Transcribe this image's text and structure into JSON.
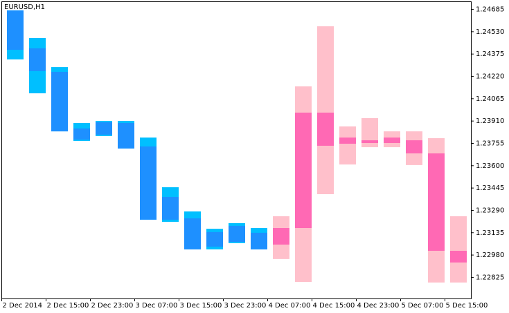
{
  "chart_data": {
    "type": "box-chart",
    "title": "EURUSD,H1",
    "xlim": [
      0,
      84.75
    ],
    "ylim": [
      1.22676,
      1.24738
    ],
    "xticks": [
      {
        "value": 0,
        "label": "2 Dec 2014"
      },
      {
        "value": 8,
        "label": "2 Dec 15:00"
      },
      {
        "value": 16,
        "label": "2 Dec 23:00"
      },
      {
        "value": 24,
        "label": "3 Dec 07:00"
      },
      {
        "value": 32,
        "label": "3 Dec 15:00"
      },
      {
        "value": 40,
        "label": "3 Dec 23:00"
      },
      {
        "value": 48,
        "label": "4 Dec 07:00"
      },
      {
        "value": 56,
        "label": "4 Dec 15:00"
      },
      {
        "value": 64,
        "label": "4 Dec 23:00"
      },
      {
        "value": 72,
        "label": "5 Dec 07:00"
      },
      {
        "value": 80,
        "label": "5 Dec 15:00"
      }
    ],
    "yticks": [
      1.22825,
      {
        "value": 1.2298,
        "label": "1.22980"
      },
      1.23135,
      {
        "value": 1.2329,
        "label": "1.23290"
      },
      1.23445,
      {
        "value": 1.236,
        "label": "1.23600"
      },
      1.23755,
      {
        "value": 1.2391,
        "label": "1.23910"
      },
      1.24065,
      {
        "value": 1.2422,
        "label": "1.24220"
      },
      1.24375,
      {
        "value": 1.2453,
        "label": "1.24530"
      },
      1.24685
    ],
    "boxes": {
      "start": [
        1,
        5,
        9,
        13,
        17,
        21,
        25,
        29,
        33,
        37,
        41,
        45,
        49,
        53,
        57,
        61,
        65,
        69,
        73,
        77,
        81
      ],
      "end": [
        4,
        8,
        12,
        16,
        20,
        24,
        28,
        32,
        36,
        40,
        44,
        48,
        52,
        56,
        60,
        64,
        68,
        72,
        76,
        80,
        84
      ],
      "outer_high": [
        1.24675,
        1.24484,
        1.24282,
        1.23894,
        1.23908,
        1.23908,
        1.23793,
        1.23448,
        1.2328,
        1.2316,
        1.23199,
        1.23165,
        1.23247,
        1.24148,
        1.24565,
        1.2387,
        1.23928,
        1.23836,
        1.23836,
        1.23789,
        1.23247
      ],
      "outer_low": [
        1.24335,
        1.241,
        1.23836,
        1.23769,
        1.23803,
        1.23717,
        1.23223,
        1.23208,
        1.23017,
        1.23017,
        1.2306,
        1.23017,
        1.2295,
        1.22791,
        1.234,
        1.23606,
        1.23726,
        1.23726,
        1.23602,
        1.22787,
        1.22787
      ],
      "inner_high": [
        1.24675,
        1.24412,
        1.24249,
        1.23856,
        1.23899,
        1.23894,
        1.23731,
        1.23381,
        1.23232,
        1.23137,
        1.2318,
        1.23132,
        1.23165,
        1.23966,
        1.23966,
        1.23793,
        1.23774,
        1.23793,
        1.23774,
        1.23683,
        1.23007
      ],
      "inner_low": [
        1.24402,
        1.24254,
        1.23836,
        1.23779,
        1.23813,
        1.23717,
        1.23223,
        1.23223,
        1.23017,
        1.23036,
        1.23069,
        1.23017,
        1.2305,
        1.23165,
        1.23736,
        1.2375,
        1.23755,
        1.23755,
        1.23683,
        1.23007,
        1.22926
      ],
      "outer_color": [
        "#00bfff",
        "#00bfff",
        "#00bfff",
        "#00bfff",
        "#00bfff",
        "#00bfff",
        "#00bfff",
        "#00bfff",
        "#00bfff",
        "#00bfff",
        "#00bfff",
        "#00bfff",
        "#ffc0cb",
        "#ffc0cb",
        "#ffc0cb",
        "#ffc0cb",
        "#ffc0cb",
        "#ffc0cb",
        "#ffc0cb",
        "#ffc0cb",
        "#ffc0cb"
      ],
      "inner_color": [
        "#1e90ff",
        "#1e90ff",
        "#1e90ff",
        "#1e90ff",
        "#1e90ff",
        "#1e90ff",
        "#1e90ff",
        "#1e90ff",
        "#1e90ff",
        "#1e90ff",
        "#1e90ff",
        "#1e90ff",
        "#ff69b4",
        "#ff69b4",
        "#ff69b4",
        "#ff69b4",
        "#ff69b4",
        "#ff69b4",
        "#ff69b4",
        "#ff69b4",
        "#ff69b4"
      ]
    }
  }
}
